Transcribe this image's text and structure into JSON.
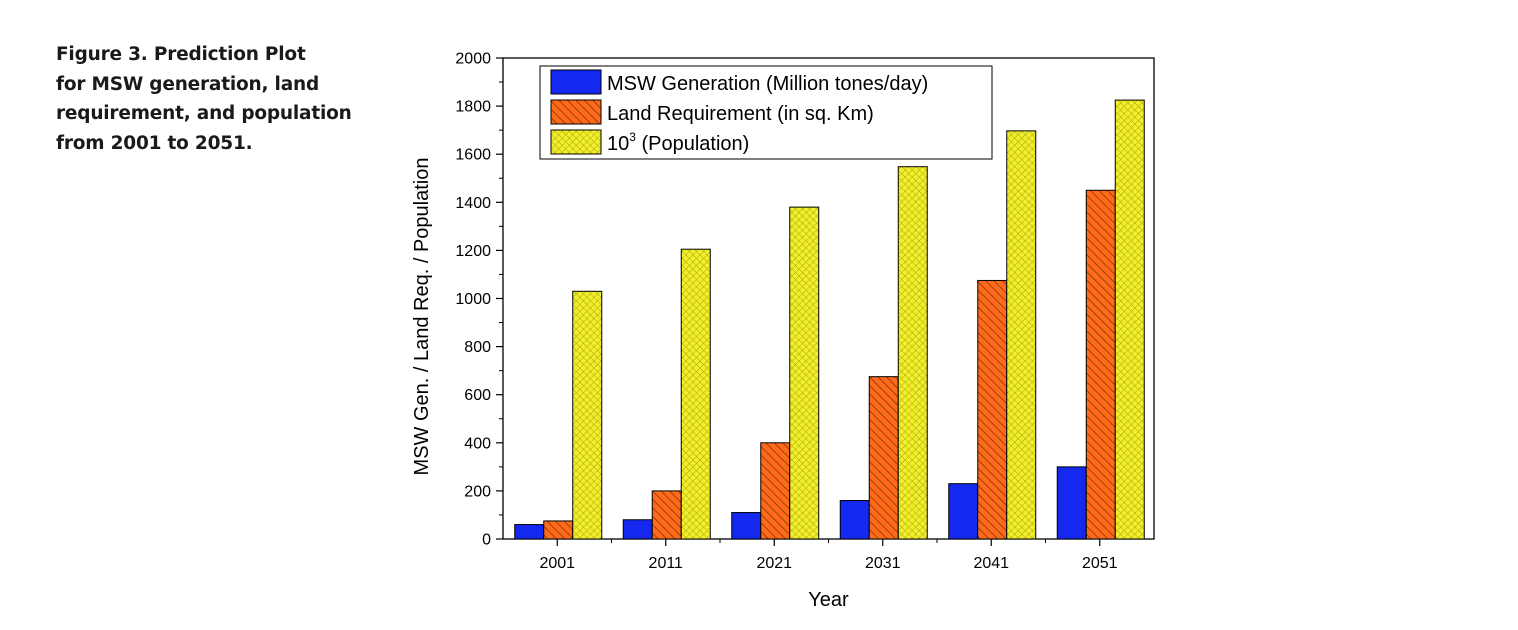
{
  "caption": {
    "lines": [
      "Figure 3. Prediction Plot",
      "for MSW generation, land",
      "requirement, and population",
      "from 2001 to 2051."
    ]
  },
  "chart_data": {
    "type": "bar",
    "xlabel": "Year",
    "ylabel": "MSW Gen. / Land Req. / Population",
    "ylim": [
      0,
      2000
    ],
    "yticks": [
      0,
      200,
      400,
      600,
      800,
      1000,
      1200,
      1400,
      1600,
      1800,
      2000
    ],
    "categories": [
      "2001",
      "2011",
      "2021",
      "2031",
      "2041",
      "2051"
    ],
    "legend_position": "top-left",
    "grid": false,
    "series": [
      {
        "name": "MSW Generation (Million tones/day)",
        "color": "#1428f0",
        "pattern": "solid",
        "values": [
          60,
          80,
          110,
          160,
          230,
          300
        ]
      },
      {
        "name": "Land Requirement (in sq. Km)",
        "color": "#ff6a1a",
        "pattern": "diagonal-hatch",
        "values": [
          75,
          200,
          400,
          675,
          1075,
          1450
        ]
      },
      {
        "name_main": "10",
        "name_sup": "3",
        "name_rest": " (Population)",
        "color": "#f2ee2a",
        "pattern": "crosshatch",
        "values": [
          1030,
          1205,
          1380,
          1548,
          1697,
          1825
        ]
      }
    ]
  }
}
